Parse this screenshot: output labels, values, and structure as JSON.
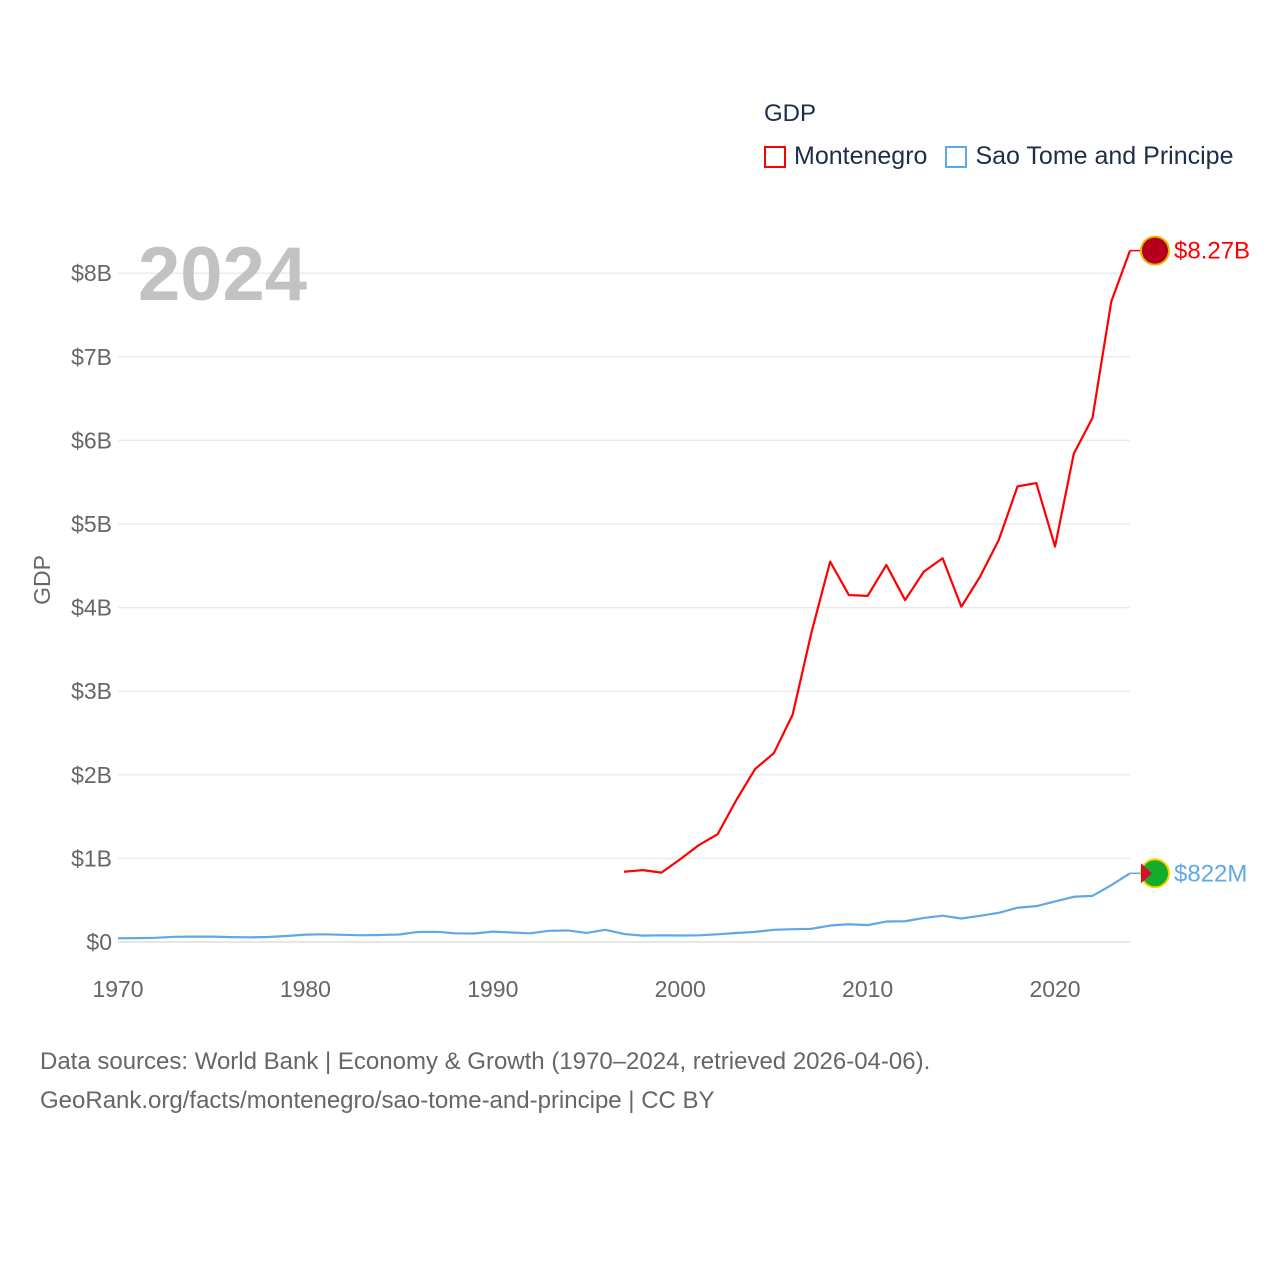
{
  "chart_data": {
    "type": "line",
    "title": "GDP",
    "year_label": "2024",
    "ylabel": "GDP",
    "xlabel": "",
    "xlim": [
      1970,
      2024
    ],
    "ylim": [
      0,
      8.3
    ],
    "y_unit": "billion USD",
    "x_ticks": [
      "1970",
      "1980",
      "1990",
      "2000",
      "2010",
      "2020"
    ],
    "y_ticks": [
      {
        "v": 0,
        "label": "$0"
      },
      {
        "v": 1,
        "label": "$1B"
      },
      {
        "v": 2,
        "label": "$2B"
      },
      {
        "v": 3,
        "label": "$3B"
      },
      {
        "v": 4,
        "label": "$4B"
      },
      {
        "v": 5,
        "label": "$5B"
      },
      {
        "v": 6,
        "label": "$6B"
      },
      {
        "v": 7,
        "label": "$7B"
      },
      {
        "v": 8,
        "label": "$8B"
      }
    ],
    "grid": true,
    "legend_placement": "top-right",
    "series": [
      {
        "name": "Montenegro",
        "color": "#ff0000",
        "end_label": "$8.27B",
        "start_year": 1997,
        "values": [
          0.84,
          0.86,
          0.83,
          0.99,
          1.16,
          1.29,
          1.7,
          2.07,
          2.26,
          2.72,
          3.7,
          4.55,
          4.15,
          4.14,
          4.51,
          4.09,
          4.43,
          4.59,
          4.01,
          4.37,
          4.81,
          5.45,
          5.49,
          4.73,
          5.84,
          6.27,
          7.66,
          8.27
        ]
      },
      {
        "name": "Sao Tome and Principe",
        "color": "#5fa8e8",
        "end_label": "$822M",
        "start_year": 1970,
        "values": [
          0.045,
          0.046,
          0.05,
          0.062,
          0.064,
          0.064,
          0.058,
          0.056,
          0.06,
          0.072,
          0.088,
          0.092,
          0.086,
          0.08,
          0.084,
          0.09,
          0.12,
          0.122,
          0.104,
          0.102,
          0.124,
          0.114,
          0.104,
          0.134,
          0.138,
          0.108,
          0.146,
          0.096,
          0.076,
          0.08,
          0.078,
          0.08,
          0.092,
          0.108,
          0.121,
          0.146,
          0.153,
          0.158,
          0.197,
          0.212,
          0.202,
          0.245,
          0.248,
          0.288,
          0.315,
          0.281,
          0.313,
          0.349,
          0.41,
          0.429,
          0.485,
          0.541,
          0.552,
          0.68,
          0.822
        ]
      }
    ]
  },
  "footer": {
    "line1": "Data sources: World Bank | Economy & Growth (1970–2024, retrieved 2026-04-06).",
    "line2": "GeoRank.org/facts/montenegro/sao-tome-and-principe | CC BY"
  }
}
